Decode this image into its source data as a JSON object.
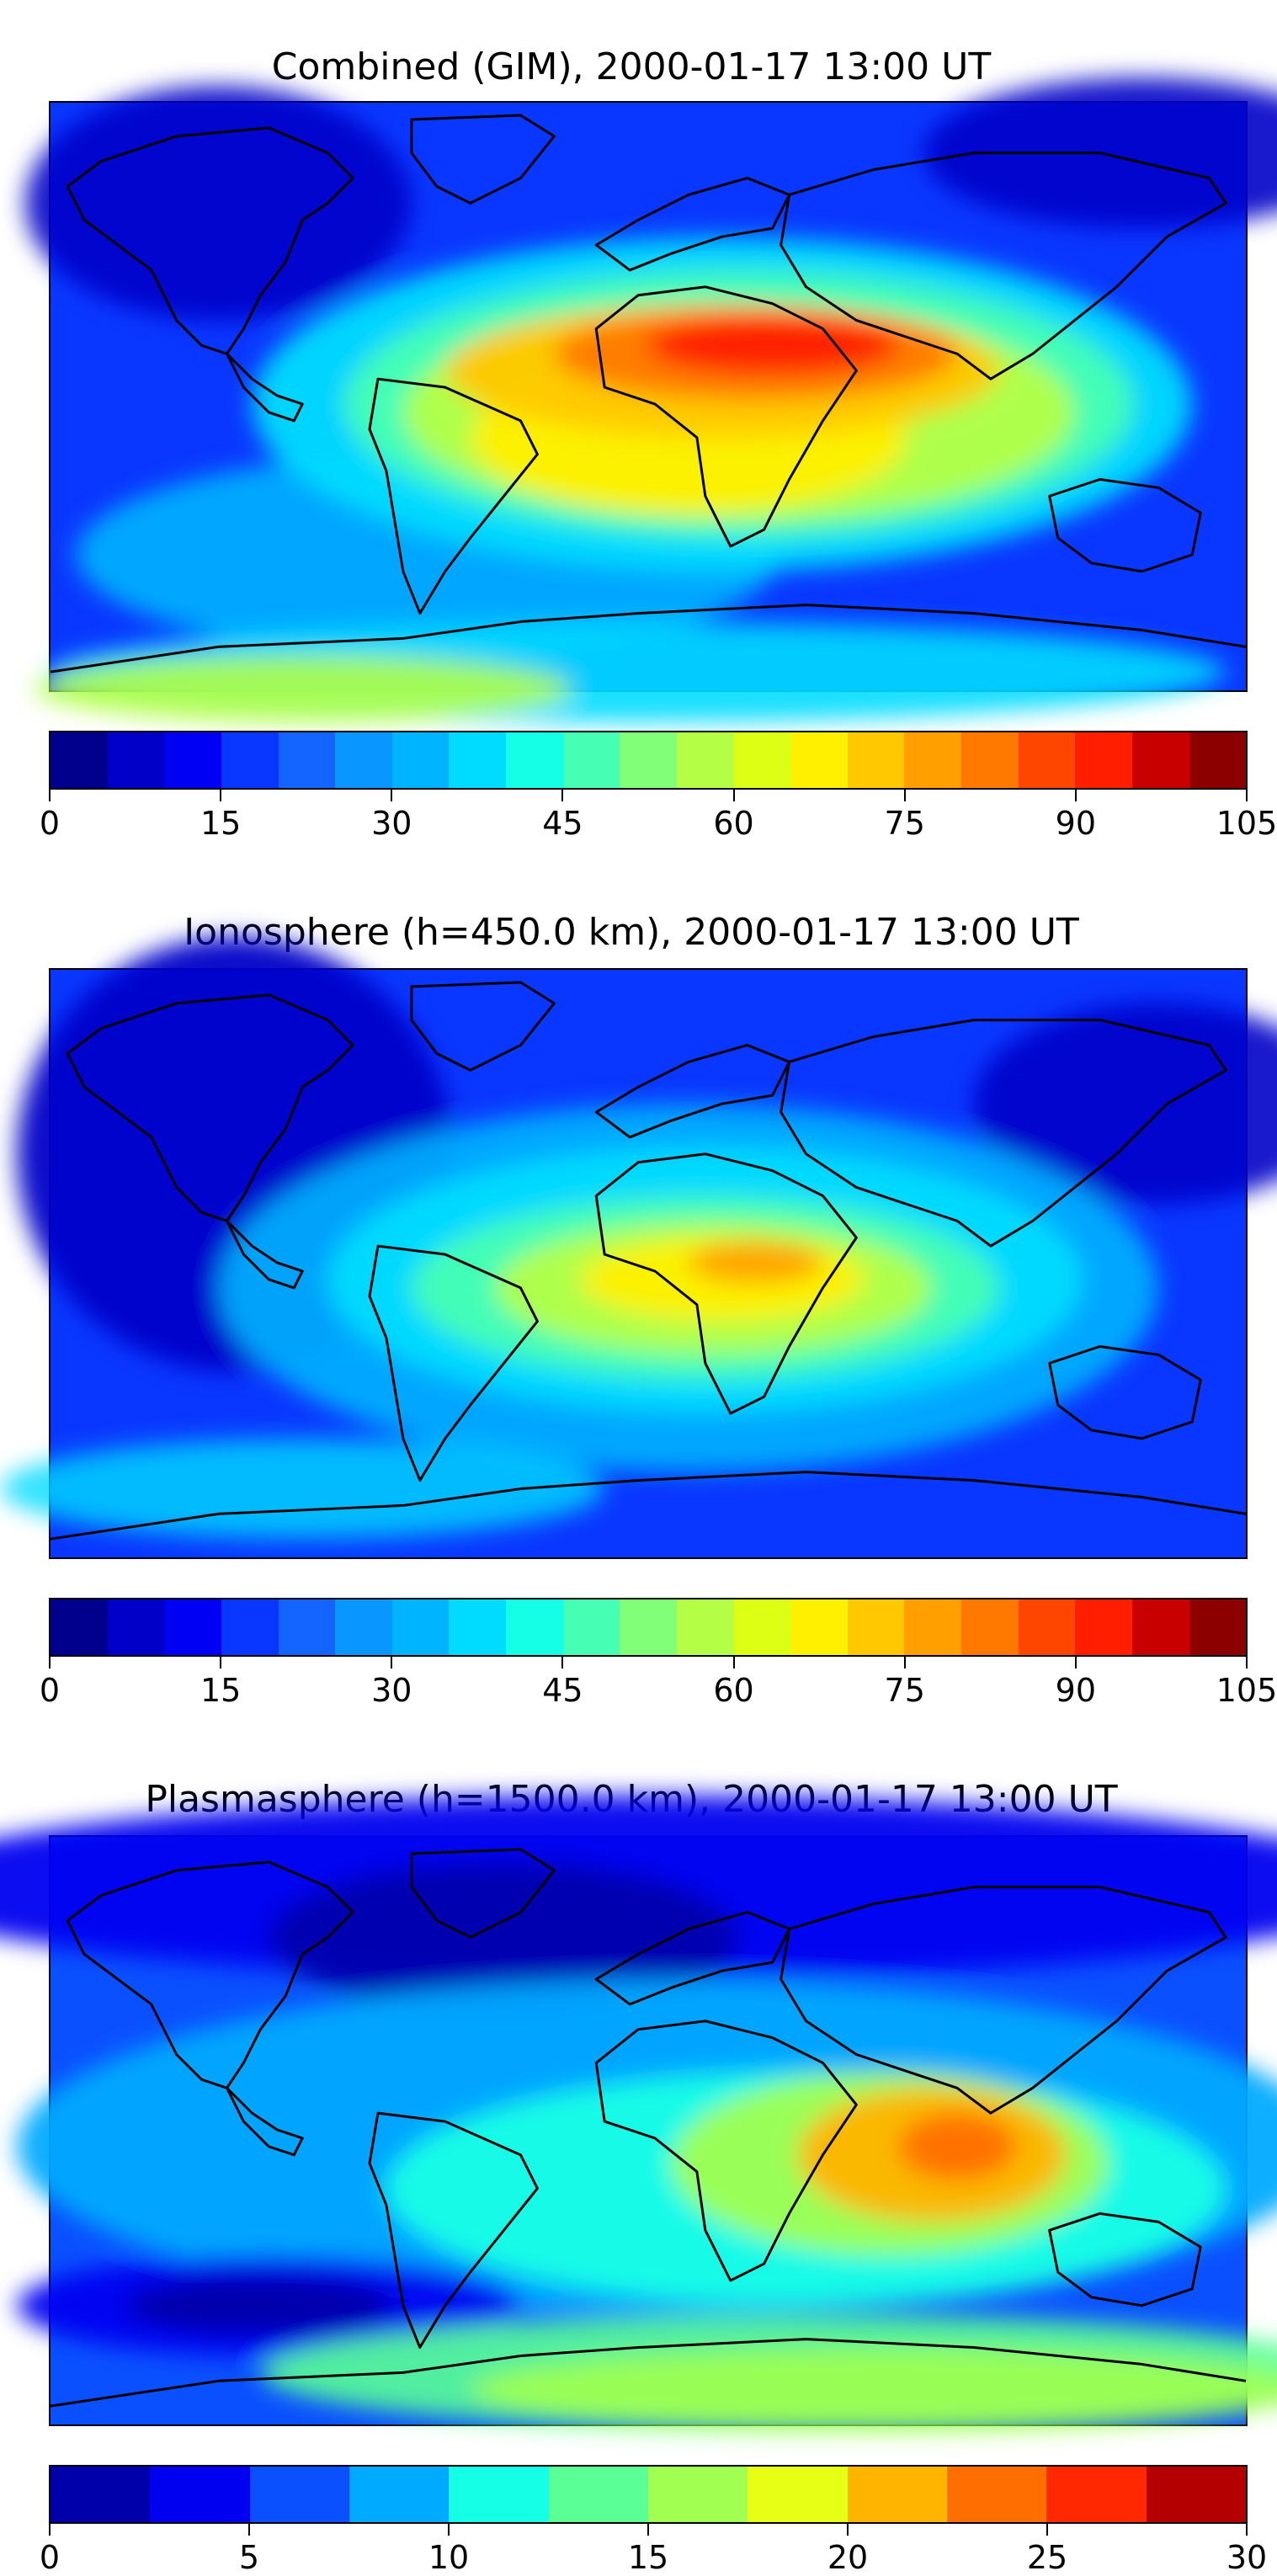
{
  "panels": [
    {
      "title": "Combined (GIM), 2000-01-17 13:00 UT",
      "colorbar": {
        "min": 0,
        "max": 105,
        "tick_labels": [
          "0",
          "15",
          "30",
          "45",
          "60",
          "75",
          "90",
          "105"
        ],
        "colors": [
          "#00008c",
          "#0000c8",
          "#0000f5",
          "#0a37ff",
          "#1464ff",
          "#0a96ff",
          "#00b4ff",
          "#00dcff",
          "#14ffe6",
          "#46ffb4",
          "#82ff78",
          "#b4ff46",
          "#dcff14",
          "#fff000",
          "#ffc800",
          "#ffa000",
          "#ff7800",
          "#ff4600",
          "#ff1e00",
          "#c80000",
          "#8c0000"
        ]
      },
      "style": "combined"
    },
    {
      "title": "Ionosphere  (h=450.0 km), 2000-01-17 13:00 UT",
      "colorbar": {
        "min": 0,
        "max": 105,
        "tick_labels": [
          "0",
          "15",
          "30",
          "45",
          "60",
          "75",
          "90",
          "105"
        ],
        "colors": [
          "#00008c",
          "#0000c8",
          "#0000f5",
          "#0a37ff",
          "#1464ff",
          "#0a96ff",
          "#00b4ff",
          "#00dcff",
          "#14ffe6",
          "#46ffb4",
          "#82ff78",
          "#b4ff46",
          "#dcff14",
          "#fff000",
          "#ffc800",
          "#ffa000",
          "#ff7800",
          "#ff4600",
          "#ff1e00",
          "#c80000",
          "#8c0000"
        ]
      },
      "style": "iono"
    },
    {
      "title": "Plasmasphere (h=1500.0 km), 2000-01-17 13:00 UT",
      "colorbar": {
        "min": 0,
        "max": 30,
        "tick_labels": [
          "0",
          "5",
          "10",
          "15",
          "20",
          "25",
          "30"
        ],
        "colors": [
          "#0000aa",
          "#0000f0",
          "#0a50ff",
          "#00aaff",
          "#14ffe6",
          "#5aff96",
          "#a0ff50",
          "#e6ff14",
          "#ffb400",
          "#ff6e00",
          "#ff2800",
          "#b40000"
        ]
      },
      "style": "plasma"
    }
  ]
}
